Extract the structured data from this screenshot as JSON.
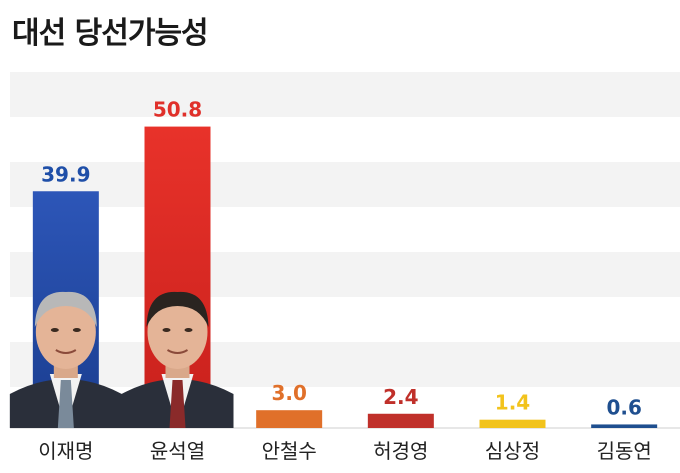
{
  "chart_data": {
    "type": "bar",
    "title": "대선 당선가능성",
    "categories": [
      "이재명",
      "윤석열",
      "안철수",
      "허경영",
      "심상정",
      "김동연"
    ],
    "values": [
      39.9,
      50.8,
      3.0,
      2.4,
      1.4,
      0.6
    ],
    "value_labels": [
      "39.9",
      "50.8",
      "3.0",
      "2.4",
      "1.4",
      "0.6"
    ],
    "colors": [
      "#1f4fa8",
      "#e0302a",
      "#e0702a",
      "#c0302a",
      "#f2c31c",
      "#1f4f8f"
    ],
    "label_colors": [
      "#1f4fa8",
      "#e0302a",
      "#e0702a",
      "#c0302a",
      "#f2c31c",
      "#1f4f8f"
    ],
    "ylim": [
      0,
      60
    ],
    "grid": true,
    "xlabel": "",
    "ylabel": ""
  }
}
